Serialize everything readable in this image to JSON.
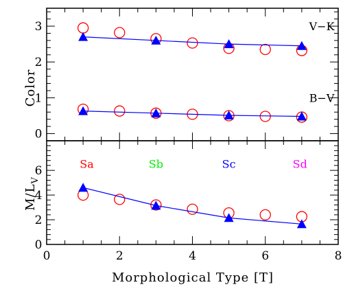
{
  "chart_data": [
    {
      "type": "scatter",
      "panel": "top",
      "xlabel": "",
      "ylabel": "Color",
      "xlim": [
        0,
        8
      ],
      "ylim": [
        -0.2,
        3.5
      ],
      "yticks": [
        0,
        1,
        2,
        3
      ],
      "xticks": [
        0,
        2,
        4,
        6,
        8
      ],
      "annotations": [
        {
          "text": "V−K",
          "x": 7.55,
          "y": 3.0
        },
        {
          "text": "B−V",
          "x": 7.55,
          "y": 1.0
        }
      ],
      "series": [
        {
          "marker": "open-circle",
          "color": "#ff0000",
          "x": [
            1,
            2,
            3,
            4,
            5,
            6,
            7
          ],
          "y": [
            2.95,
            2.82,
            2.65,
            2.53,
            2.38,
            2.35,
            2.32
          ]
        },
        {
          "marker": "filled-triangle",
          "line": true,
          "color": "#0000ff",
          "x": [
            1,
            3,
            5,
            7
          ],
          "y": [
            2.7,
            2.6,
            2.5,
            2.45
          ]
        },
        {
          "marker": "open-circle",
          "color": "#ff0000",
          "x": [
            1,
            2,
            3,
            4,
            5,
            6,
            7
          ],
          "y": [
            0.68,
            0.63,
            0.57,
            0.54,
            0.5,
            0.48,
            0.46
          ]
        },
        {
          "marker": "filled-triangle",
          "line": true,
          "color": "#0000ff",
          "x": [
            1,
            3,
            5,
            7
          ],
          "y": [
            0.63,
            0.57,
            0.51,
            0.48
          ]
        }
      ]
    },
    {
      "type": "scatter",
      "panel": "bottom",
      "xlabel": "Morphological Type [T]",
      "ylabel_main": "M/L",
      "ylabel_sub": "V",
      "xlim": [
        0,
        8
      ],
      "ylim": [
        0,
        8.4
      ],
      "yticks": [
        0,
        2,
        4,
        6
      ],
      "xticks": [
        0,
        2,
        4,
        6,
        8
      ],
      "annotations": [
        {
          "text": "Sa",
          "x": 1.1,
          "y": 6.55,
          "color": "#ff0000"
        },
        {
          "text": "Sb",
          "x": 3.0,
          "y": 6.55,
          "color": "#00ee00"
        },
        {
          "text": "Sc",
          "x": 5.0,
          "y": 6.55,
          "color": "#0000ff"
        },
        {
          "text": "Sd",
          "x": 6.95,
          "y": 6.55,
          "color": "#ff00ff"
        }
      ],
      "series": [
        {
          "marker": "open-circle",
          "color": "#ff0000",
          "x": [
            1,
            2,
            3,
            4,
            5,
            6,
            7
          ],
          "y": [
            4.0,
            3.65,
            3.2,
            2.85,
            2.55,
            2.4,
            2.25
          ]
        },
        {
          "marker": "filled-triangle",
          "line": true,
          "color": "#0000ff",
          "x": [
            1,
            3,
            5,
            7
          ],
          "y": [
            4.6,
            3.15,
            2.15,
            1.65
          ]
        }
      ]
    }
  ]
}
